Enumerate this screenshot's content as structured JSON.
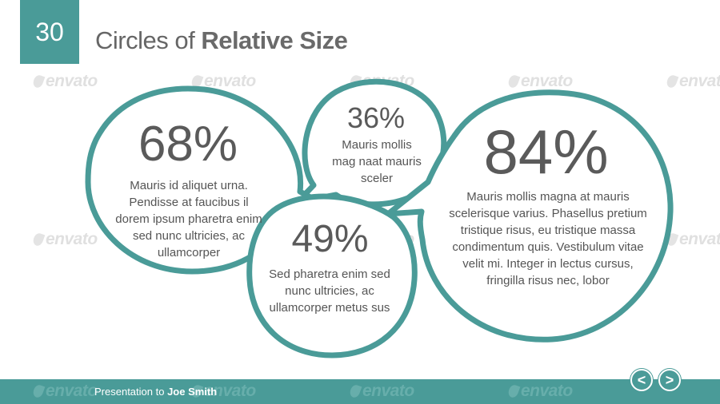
{
  "slide": {
    "number": "30",
    "title_regular": "Circles of ",
    "title_bold": "Relative Size"
  },
  "watermark": "envato",
  "bubbles": [
    {
      "percent": "68%",
      "text": "Mauris id aliquet urna. Pendisse at faucibus il dorem ipsum pharetra enim sed nunc ultricies, ac ullamcorper"
    },
    {
      "percent": "36%",
      "text": "Mauris mollis mag naat mauris sceler"
    },
    {
      "percent": "49%",
      "text": "Sed pharetra enim sed nunc ultricies, ac ullamcorper metus sus"
    },
    {
      "percent": "84%",
      "text": "Mauris mollis magna at mauris scelerisque varius. Phasellus pretium tristique risus, eu tristique massa condimentum quis. Vestibulum vitae velit mi. Integer in lectus cursus, fringilla risus nec, lobor"
    }
  ],
  "footer": {
    "prefix": "Presentation to ",
    "name": "Joe Smith"
  },
  "nav": {
    "prev_label": "<",
    "next_label": ">"
  },
  "colors": {
    "accent": "#4a9b98",
    "text": "#555555"
  },
  "icons": {
    "prev": "chevron-left-icon",
    "next": "chevron-right-icon"
  }
}
